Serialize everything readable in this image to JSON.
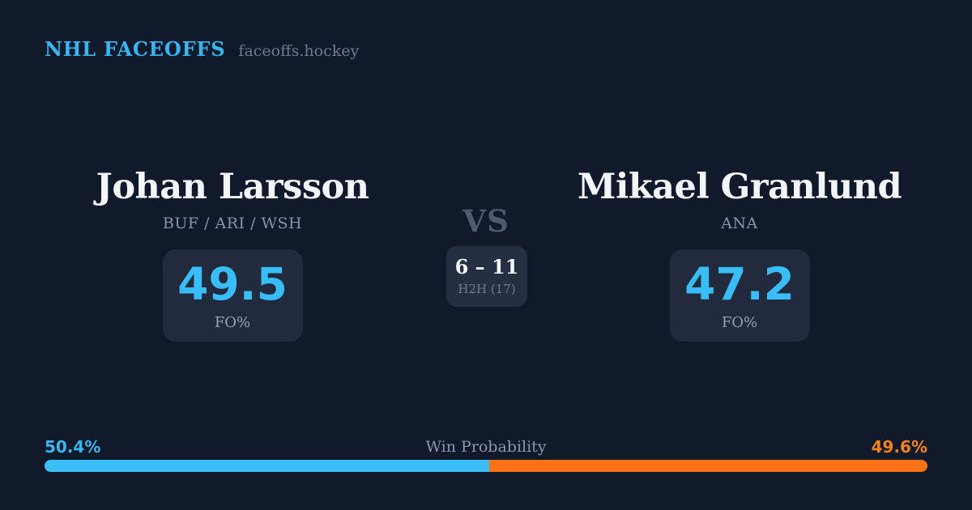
{
  "header": {
    "brand": "NHL FACEOFFS",
    "site": "faceoffs.hockey"
  },
  "players": [
    {
      "name": "Johan Larsson",
      "teams": "BUF / ARI / WSH",
      "value": "49.5",
      "value_label": "FO%"
    },
    {
      "name": "Mikael Granlund",
      "teams": "ANA",
      "value": "47.2",
      "value_label": "FO%"
    }
  ],
  "matchup": {
    "vs": "VS",
    "h2h_score": "6 – 11",
    "h2h_label": "H2H (17)"
  },
  "win_probability": {
    "title": "Win Probability",
    "left_text": "50.4%",
    "right_text": "49.6%",
    "left_value": 50.4,
    "right_value": 49.6
  },
  "colors": {
    "background": "#111a2b",
    "card": "#212b3d",
    "h2h_card": "#252f42",
    "accent_blue": "#38bdf8",
    "accent_orange": "#f97316",
    "text_white": "#f2f5f9",
    "text_muted": "#8994a9",
    "vs_gray": "#4e5b73"
  }
}
